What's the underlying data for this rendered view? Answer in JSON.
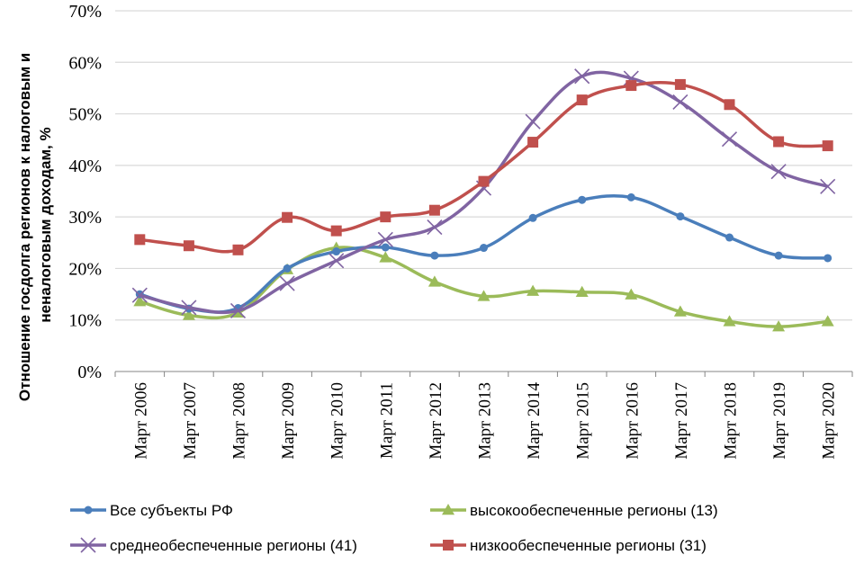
{
  "chart_data": {
    "type": "line",
    "title": "",
    "xlabel": "",
    "ylabel": "Отношение госдолга регионов к налоговым и неналоговым доходам, %",
    "ylabel_lines": [
      "Отношение госдолга регионов к налоговым и",
      "неналоговым доходам, %"
    ],
    "ylim": [
      0,
      70
    ],
    "yticks": [
      0,
      10,
      20,
      30,
      40,
      50,
      60,
      70
    ],
    "ytick_labels": [
      "0%",
      "10%",
      "20%",
      "30%",
      "40%",
      "50%",
      "60%",
      "70%"
    ],
    "grid": true,
    "legend_position": "bottom",
    "categories": [
      "Март 2006",
      "Март 2007",
      "Март 2008",
      "Март 2009",
      "Март 2010",
      "Март 2011",
      "Март 2012",
      "Март 2013",
      "Март 2014",
      "Март 2015",
      "Март 2016",
      "Март 2017",
      "Март 2018",
      "Март 2019",
      "Март 2020"
    ],
    "series": [
      {
        "name": "Все субъекты РФ",
        "color": "#4a7ebb",
        "marker": "circle",
        "values": [
          15.0,
          12.2,
          12.3,
          20.0,
          23.3,
          24.1,
          22.5,
          24.0,
          29.8,
          33.3,
          33.8,
          30.1,
          26.0,
          22.5,
          22.0
        ]
      },
      {
        "name": "высокообеспеченные регионы (13)",
        "color": "#9bbb59",
        "marker": "triangle",
        "values": [
          13.6,
          10.9,
          11.4,
          19.8,
          24.0,
          22.1,
          17.4,
          14.6,
          15.6,
          15.4,
          14.9,
          11.6,
          9.7,
          8.7,
          9.7
        ]
      },
      {
        "name": "среднеобеспеченные регионы (41)",
        "color": "#8064a2",
        "marker": "x",
        "values": [
          14.8,
          12.4,
          11.8,
          17.1,
          21.5,
          25.6,
          28.0,
          35.6,
          48.5,
          57.3,
          56.9,
          52.3,
          45.1,
          38.8,
          35.9
        ]
      },
      {
        "name": "низкообеспеченные регионы (31)",
        "color": "#c0504d",
        "marker": "square",
        "values": [
          25.6,
          24.4,
          23.6,
          29.9,
          27.3,
          30.0,
          31.3,
          36.9,
          44.5,
          52.7,
          55.5,
          55.7,
          51.8,
          44.6,
          43.8
        ]
      }
    ]
  }
}
